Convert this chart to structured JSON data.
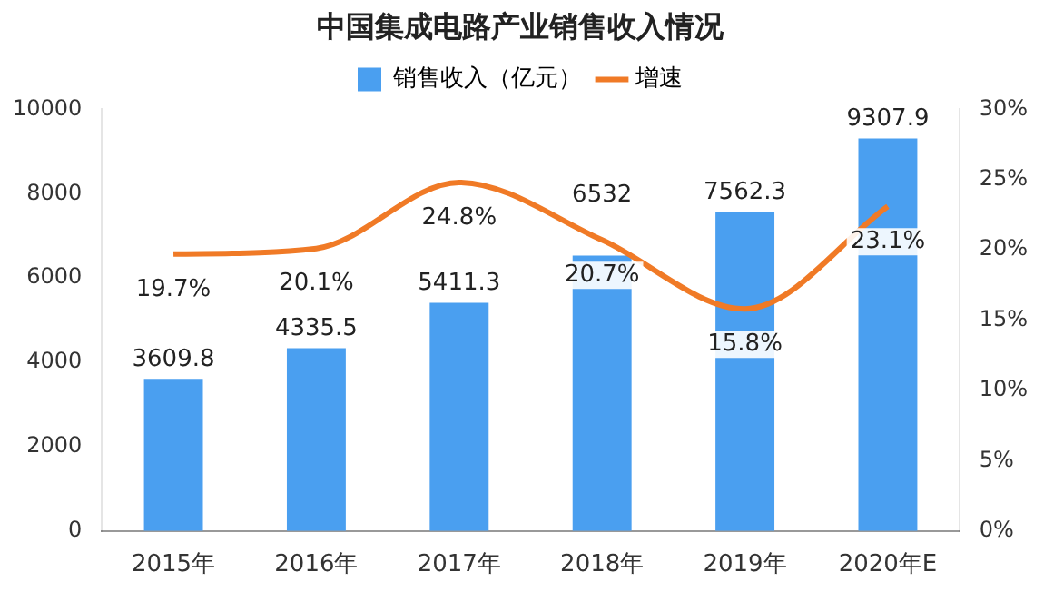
{
  "chart_data": {
    "type": "bar",
    "title": "中国集成电路产业销售收入情况",
    "categories": [
      "2015年",
      "2016年",
      "2017年",
      "2018年",
      "2019年",
      "2020年E"
    ],
    "series": [
      {
        "name": "销售收入（亿元）",
        "type": "bar",
        "color": "#4a9ff0",
        "values": [
          3609.8,
          4335.5,
          5411.3,
          6532,
          7562.3,
          9307.9
        ],
        "value_labels": [
          "3609.8",
          "4335.5",
          "5411.3",
          "6532",
          "7562.3",
          "9307.9"
        ]
      },
      {
        "name": "增速",
        "type": "line",
        "axis": "y2",
        "color": "#f07a26",
        "values": [
          19.7,
          20.1,
          24.8,
          20.7,
          15.8,
          23.1
        ],
        "value_labels": [
          "19.7%",
          "20.1%",
          "24.8%",
          "20.7%",
          "15.8%",
          "23.1%"
        ]
      }
    ],
    "ylim": [
      0,
      10000
    ],
    "yticks": [
      0,
      2000,
      4000,
      6000,
      8000,
      10000
    ],
    "y2lim": [
      0,
      30
    ],
    "y2ticks": [
      {
        "value": 0,
        "label": "0%"
      },
      {
        "value": 5,
        "label": "5%"
      },
      {
        "value": 10,
        "label": "10%"
      },
      {
        "value": 15,
        "label": "15%"
      },
      {
        "value": 20,
        "label": "20%"
      },
      {
        "value": 25,
        "label": "25%"
      },
      {
        "value": 30,
        "label": "30%"
      }
    ],
    "legend": "top",
    "grid": false,
    "marker": "none",
    "line_style": "solid"
  }
}
